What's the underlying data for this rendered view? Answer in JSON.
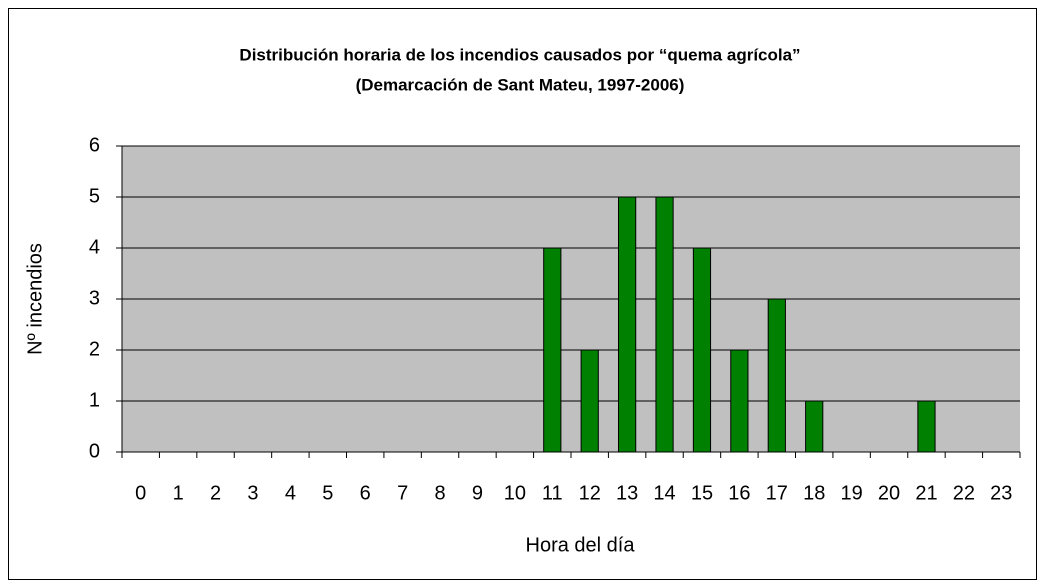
{
  "chart_data": {
    "type": "bar",
    "title": "Distribución horaria de los incendios causados por “quema agrícola”",
    "subtitle": "(Demarcación de Sant Mateu, 1997-2006)",
    "x_label": "Hora del día",
    "y_label": "Nº incendios",
    "categories": [
      "0",
      "1",
      "2",
      "3",
      "4",
      "5",
      "6",
      "7",
      "8",
      "9",
      "10",
      "11",
      "12",
      "13",
      "14",
      "15",
      "16",
      "17",
      "18",
      "19",
      "20",
      "21",
      "22",
      "23"
    ],
    "values": [
      0,
      0,
      0,
      0,
      0,
      0,
      0,
      0,
      0,
      0,
      0,
      4,
      2,
      5,
      5,
      4,
      2,
      3,
      1,
      0,
      0,
      1,
      0,
      0
    ],
    "color": "#008000",
    "ylim": [
      0,
      6
    ],
    "yticks": [
      0,
      1,
      2,
      3,
      4,
      5,
      6
    ],
    "grid": true
  }
}
